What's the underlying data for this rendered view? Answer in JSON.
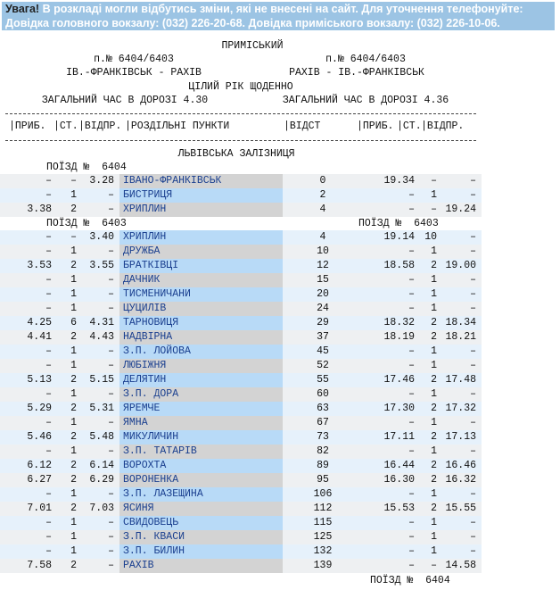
{
  "notice": {
    "label": "Увага!",
    "text": "В розкладі могли відбутись зміни, які не внесені на сайт. Для уточнення телефонуйте:",
    "line2": "Довідка головного вокзалу: (032) 226-20-68. Довідка приміського вокзалу: (032) 226-10-06."
  },
  "header": {
    "kind": "ПРИМІСЬКИЙ",
    "train_left": "п.№ 6404/6403",
    "train_right": "п.№ 6404/6403",
    "route_left": "ІВ.-ФРАНКІВСЬК - РАХІВ",
    "route_right": "РАХІВ - ІВ.-ФРАНКІВСЬК",
    "schedule": "ЦІЛИЙ РІК ЩОДЕННО",
    "time_left": "ЗАГАЛЬНИЙ ЧАС В ДОРОЗІ 4.30",
    "time_right": "ЗАГАЛЬНИЙ ЧАС В ДОРОЗІ 4.36"
  },
  "columns": [
    "|ПРИБ.",
    "|СТ.",
    "|ВІДПР.",
    "|РОЗДІЛЬНІ ПУНКТИ",
    "|ВІДСТ",
    "|ПРИБ.",
    "|СТ.",
    "|ВІДПР."
  ],
  "railway": "ЛЬВІВСЬКА ЗАЛІЗНИЦЯ",
  "sections": [
    {
      "train_left": "ПОЇЗД №  6404",
      "rows": [
        [
          "–",
          "–",
          "3.28",
          "ІВАНО-ФРАНКІВСЬК",
          "0",
          "19.34",
          "–",
          "–"
        ],
        [
          "–",
          "1",
          "–",
          "БИСТРИЦЯ",
          "2",
          "–",
          "1",
          "–"
        ],
        [
          "3.38",
          "2",
          "–",
          "ХРИПЛИН",
          "4",
          "–",
          "–",
          "19.24"
        ]
      ]
    },
    {
      "train_left": "ПОЇЗД №  6403",
      "train_right": "ПОЇЗД №  6403",
      "rows": [
        [
          "–",
          "–",
          "3.40",
          "ХРИПЛИН",
          "4",
          "19.14",
          "10",
          "–"
        ],
        [
          "–",
          "1",
          "–",
          "ДРУЖБА",
          "10",
          "–",
          "1",
          "–"
        ],
        [
          "3.53",
          "2",
          "3.55",
          "БРАТКІВЦІ",
          "12",
          "18.58",
          "2",
          "19.00"
        ],
        [
          "–",
          "1",
          "–",
          "ДАЧНИК",
          "15",
          "–",
          "1",
          "–"
        ],
        [
          "–",
          "1",
          "–",
          "ТИСМЕНИЧАНИ",
          "20",
          "–",
          "1",
          "–"
        ],
        [
          "–",
          "1",
          "–",
          "ЦУЦИЛІВ",
          "24",
          "–",
          "1",
          "–"
        ],
        [
          "4.25",
          "6",
          "4.31",
          "ТАРНОВИЦЯ",
          "29",
          "18.32",
          "2",
          "18.34"
        ],
        [
          "4.41",
          "2",
          "4.43",
          "НАДВІРНА",
          "37",
          "18.19",
          "2",
          "18.21"
        ],
        [
          "–",
          "1",
          "–",
          "З.П. ЛОЙОВА",
          "45",
          "–",
          "1",
          "–"
        ],
        [
          "–",
          "1",
          "–",
          "ЛЮБІЖНЯ",
          "52",
          "–",
          "1",
          "–"
        ],
        [
          "5.13",
          "2",
          "5.15",
          "ДЕЛЯТИН",
          "55",
          "17.46",
          "2",
          "17.48"
        ],
        [
          "–",
          "1",
          "–",
          "З.П. ДОРА",
          "60",
          "–",
          "1",
          "–"
        ],
        [
          "5.29",
          "2",
          "5.31",
          "ЯРЕМЧЕ",
          "63",
          "17.30",
          "2",
          "17.32"
        ],
        [
          "–",
          "1",
          "–",
          "ЯМНА",
          "67",
          "–",
          "1",
          "–"
        ],
        [
          "5.46",
          "2",
          "5.48",
          "МИКУЛИЧИН",
          "73",
          "17.11",
          "2",
          "17.13"
        ],
        [
          "–",
          "1",
          "–",
          "З.П. ТАТАРІВ",
          "82",
          "–",
          "1",
          "–"
        ],
        [
          "6.12",
          "2",
          "6.14",
          "ВОРОХТА",
          "89",
          "16.44",
          "2",
          "16.46"
        ],
        [
          "6.27",
          "2",
          "6.29",
          "ВОРОНЕНКА",
          "95",
          "16.30",
          "2",
          "16.32"
        ],
        [
          "–",
          "1",
          "–",
          "З.П. ЛАЗЕЩИНА",
          "106",
          "–",
          "1",
          "–"
        ],
        [
          "7.01",
          "2",
          "7.03",
          "ЯСИНЯ",
          "112",
          "15.53",
          "2",
          "15.55"
        ],
        [
          "–",
          "1",
          "–",
          "СВИДОВЕЦЬ",
          "115",
          "–",
          "1",
          "–"
        ],
        [
          "–",
          "1",
          "–",
          "З.П. КВАСИ",
          "125",
          "–",
          "1",
          "–"
        ],
        [
          "–",
          "1",
          "–",
          "З.П. БИЛИН",
          "132",
          "–",
          "1",
          "–"
        ],
        [
          "7.58",
          "2",
          "–",
          "РАХІВ",
          "139",
          "–",
          "–",
          "14.58"
        ]
      ]
    }
  ],
  "footer_train": "ПОЇЗД №  6404"
}
